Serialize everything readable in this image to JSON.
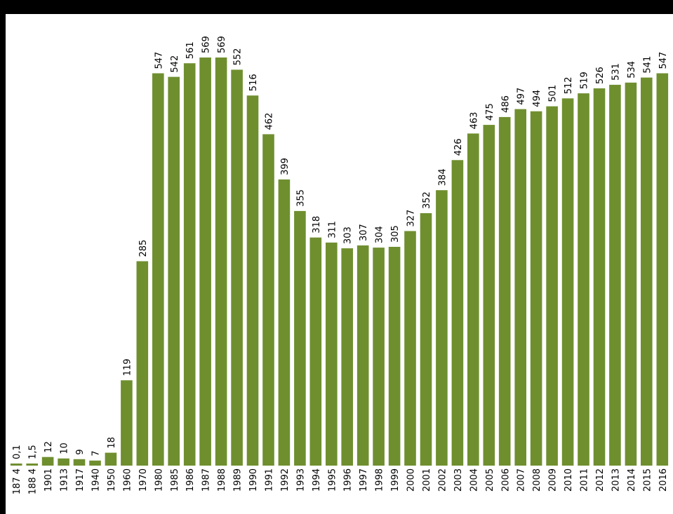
{
  "chart_data": {
    "type": "bar",
    "categories": [
      "1874",
      "1884",
      "1901",
      "1913",
      "1917",
      "1940",
      "1950",
      "1960",
      "1970",
      "1980",
      "1985",
      "1986",
      "1987",
      "1988",
      "1989",
      "1990",
      "1991",
      "1992",
      "1993",
      "1994",
      "1995",
      "1996",
      "1997",
      "1998",
      "1999",
      "2000",
      "2001",
      "2002",
      "2003",
      "2004",
      "2005",
      "2006",
      "2007",
      "2008",
      "2009",
      "2010",
      "2011",
      "2012",
      "2013",
      "2014",
      "2015",
      "2016"
    ],
    "values": [
      0.1,
      1.5,
      12,
      10,
      9,
      7,
      18,
      119,
      285,
      547,
      542,
      561,
      569,
      569,
      552,
      516,
      462,
      399,
      355,
      318,
      311,
      303,
      307,
      304,
      305,
      327,
      352,
      384,
      426,
      463,
      475,
      486,
      497,
      494,
      501,
      512,
      519,
      526,
      531,
      534,
      541,
      547
    ],
    "value_labels": [
      "0,1",
      "1,5",
      "12",
      "10",
      "9",
      "7",
      "18",
      "119",
      "285",
      "547",
      "542",
      "561",
      "569",
      "569",
      "552",
      "516",
      "462",
      "399",
      "355",
      "318",
      "311",
      "303",
      "307",
      "304",
      "305",
      "327",
      "352",
      "384",
      "426",
      "463",
      "475",
      "486",
      "497",
      "494",
      "501",
      "512",
      "519",
      "526",
      "531",
      "534",
      "541",
      "547"
    ],
    "category_labels": [
      "187 4",
      "188 4",
      "1901",
      "1913",
      "1917",
      "1940",
      "1950",
      "1960",
      "1970",
      "1980",
      "1985",
      "1986",
      "1987",
      "1988",
      "1989",
      "1990",
      "1991",
      "1992",
      "1993",
      "1994",
      "1995",
      "1996",
      "1997",
      "1998",
      "1999",
      "2000",
      "2001",
      "2002",
      "2003",
      "2004",
      "2005",
      "2006",
      "2007",
      "2008",
      "2009",
      "2010",
      "2011",
      "2012",
      "2013",
      "2014",
      "2015",
      "2016"
    ],
    "title": "",
    "xlabel": "",
    "ylabel": "",
    "ylim": [
      0,
      569
    ],
    "grid": false,
    "legend": "none",
    "bar_color": "#6f8f2f"
  }
}
